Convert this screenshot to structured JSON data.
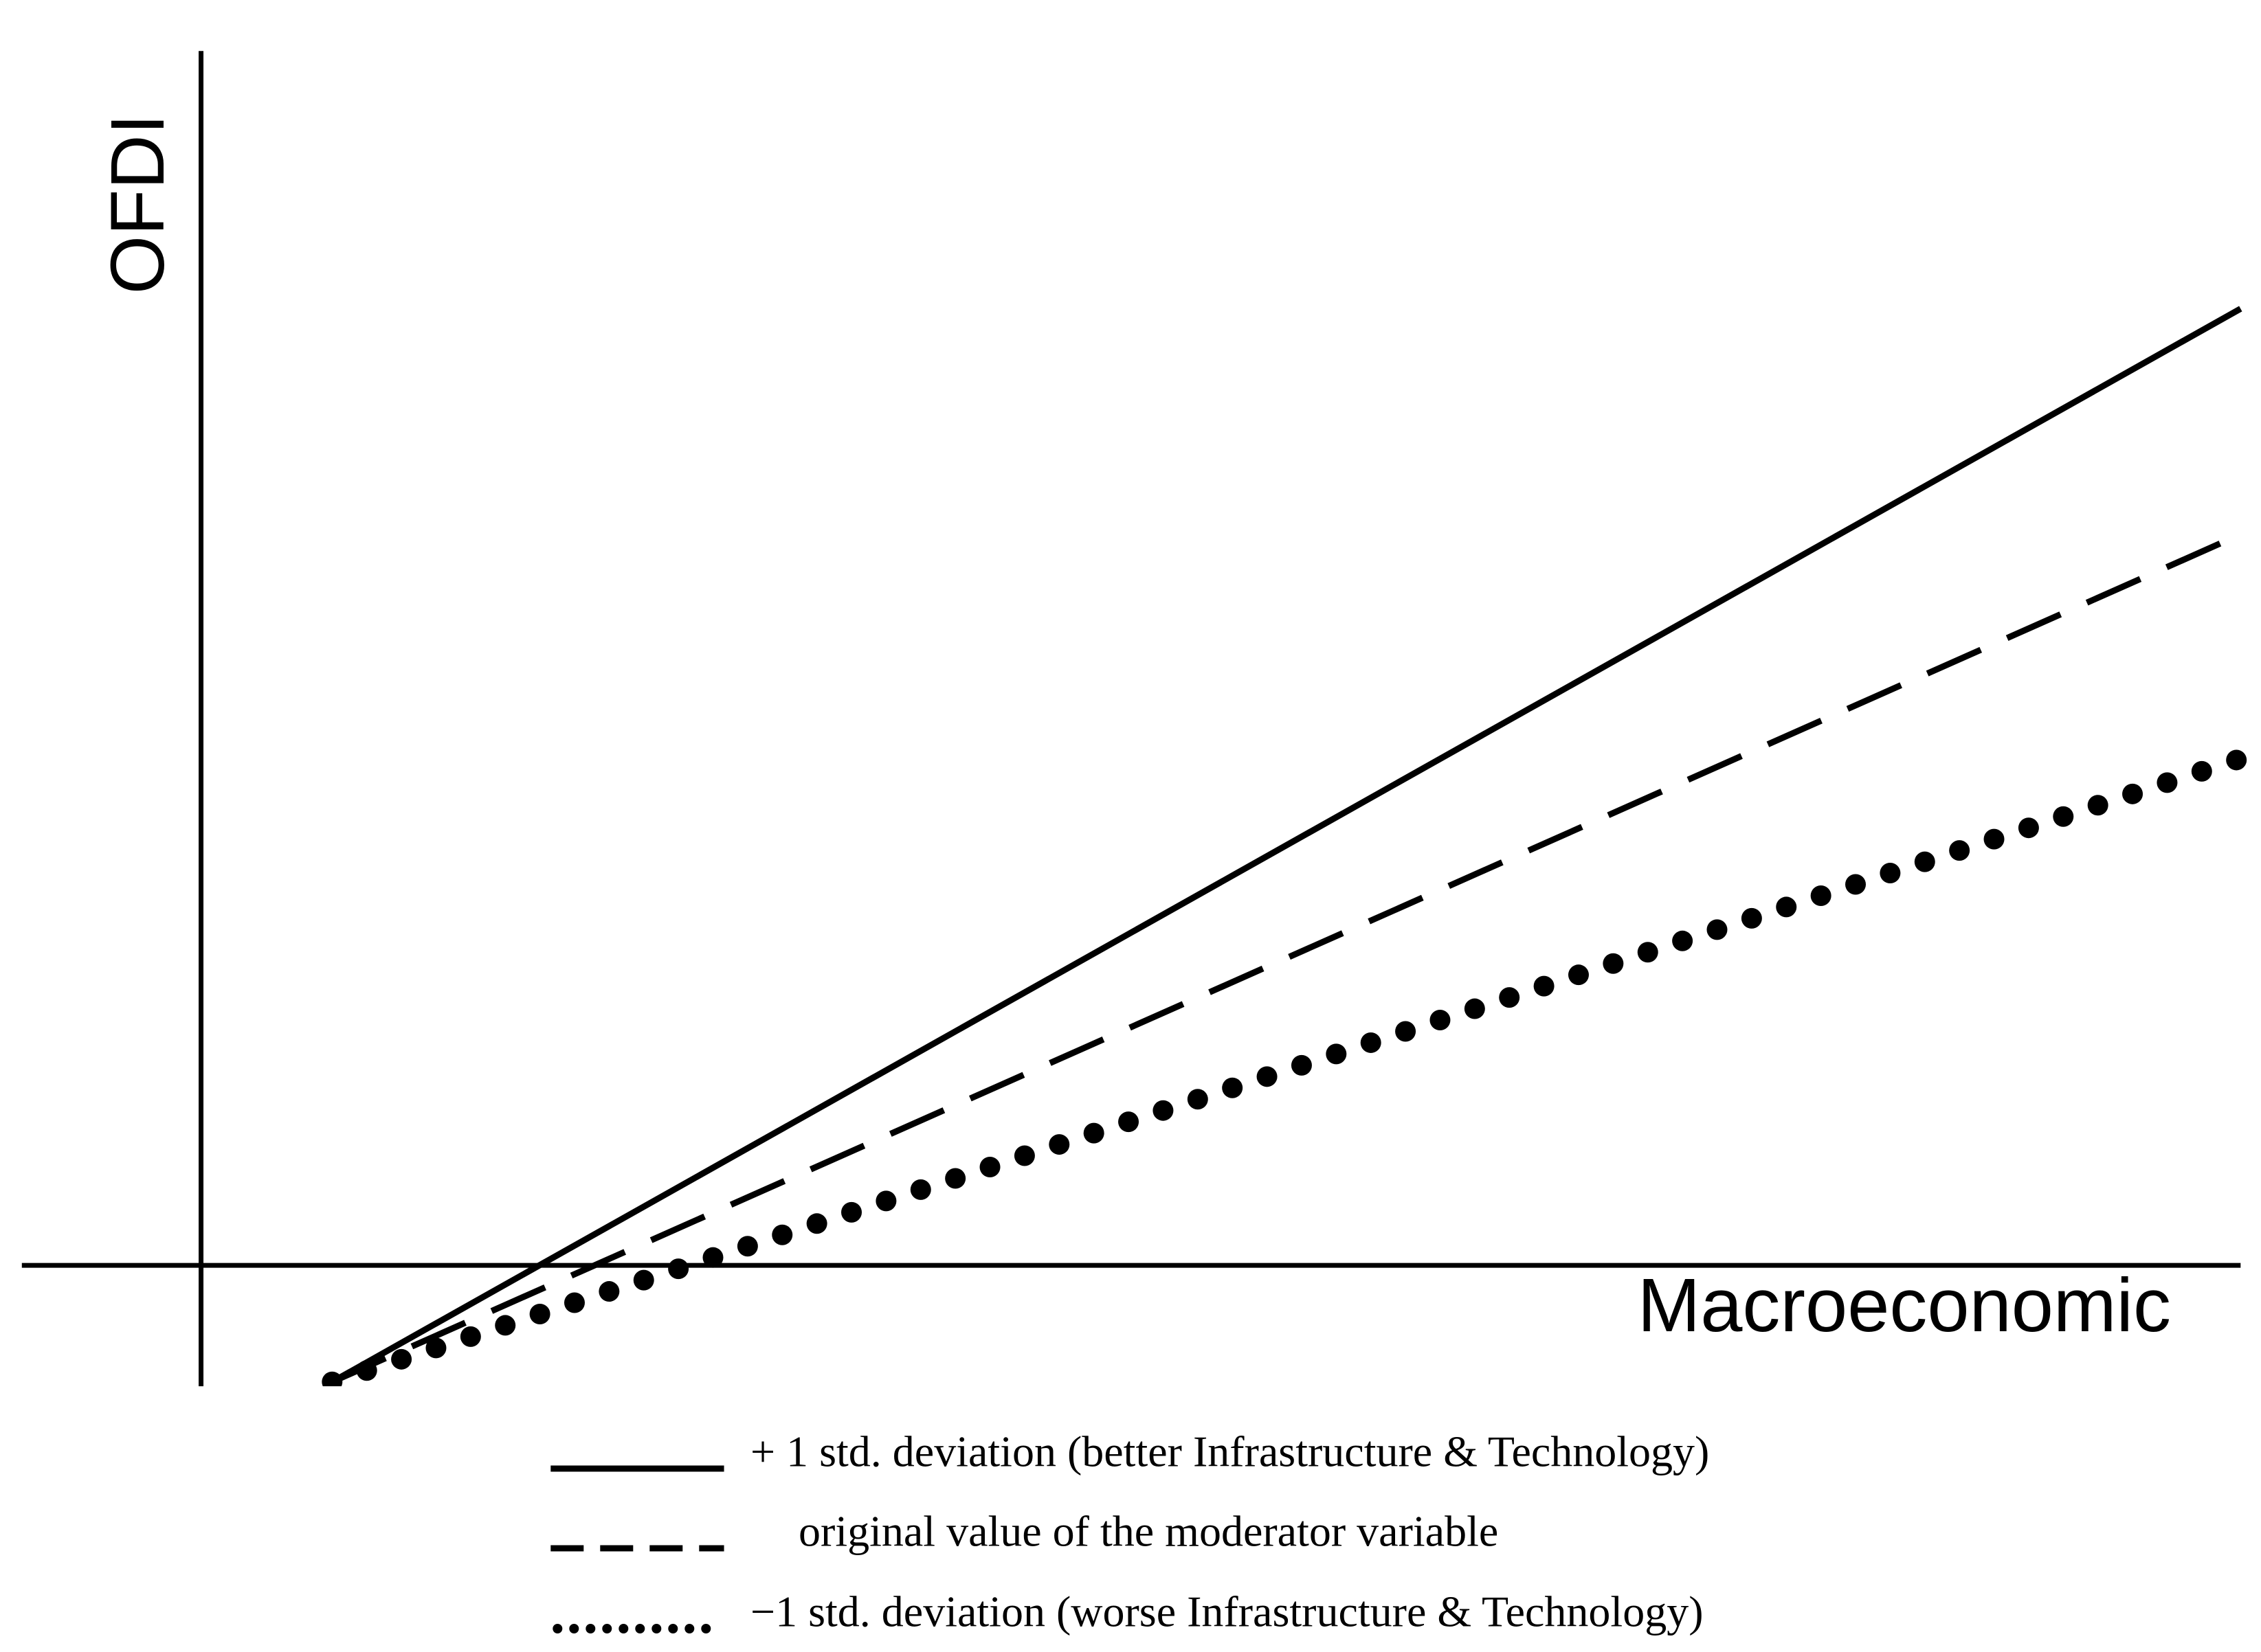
{
  "chart_data": {
    "type": "line",
    "y_label": "OFDI",
    "x_label": "Macroeconomic",
    "x": [
      0.9,
      14.0
    ],
    "xlim": [
      -1.23,
      14.0
    ],
    "ylim": [
      -0.83,
      8.34
    ],
    "series": [
      {
        "name": "+ 1 std. deviation (better Infrastructure & Technology)",
        "color": "#000000",
        "style": "solid",
        "values": [
          -0.8,
          6.57
        ]
      },
      {
        "name": "original value of the moderator variable",
        "color": "#000000",
        "style": "dashed",
        "values": [
          -0.8,
          5.02
        ]
      },
      {
        "name": "−1 std. deviation (worse Infrastructure & Technology)",
        "color": "#000000",
        "style": "dotted",
        "values": [
          -0.8,
          3.48
        ]
      }
    ],
    "grid": false
  }
}
